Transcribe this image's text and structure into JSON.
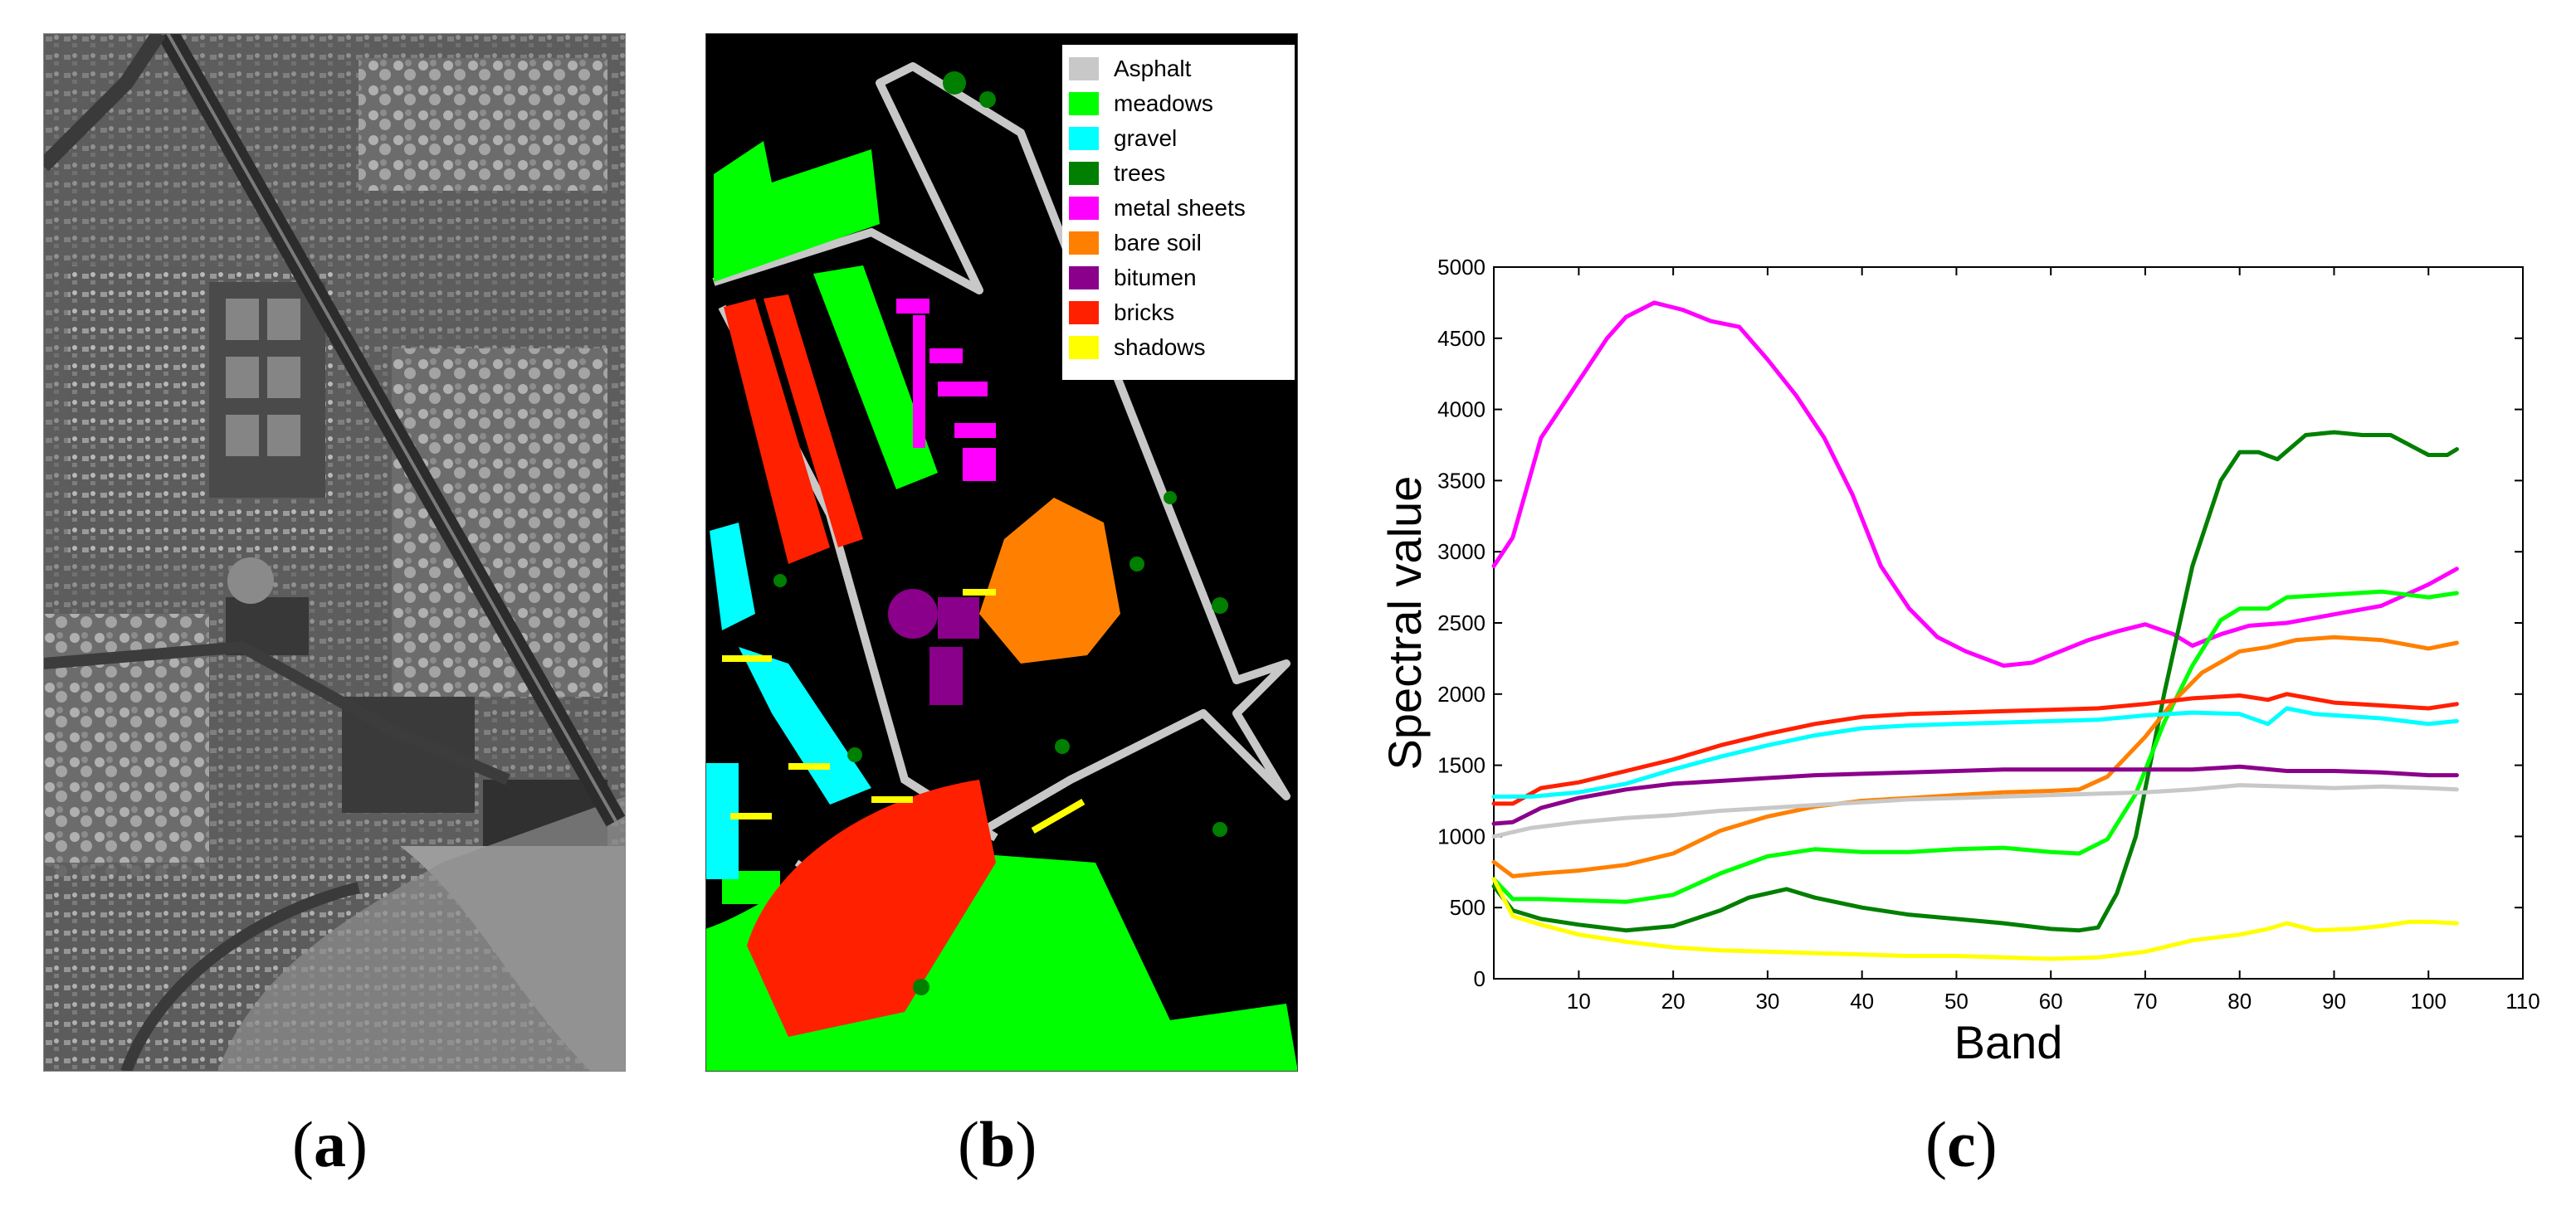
{
  "panels": {
    "a": {
      "label": "a"
    },
    "b": {
      "label": "b"
    },
    "c": {
      "label": "c"
    }
  },
  "legend": [
    {
      "label": "Asphalt",
      "color": "#c8c8c8"
    },
    {
      "label": "meadows",
      "color": "#00ff00"
    },
    {
      "label": "gravel",
      "color": "#00ffff"
    },
    {
      "label": "trees",
      "color": "#007f00"
    },
    {
      "label": "metal sheets",
      "color": "#ff00ff"
    },
    {
      "label": "bare soil",
      "color": "#ff8000"
    },
    {
      "label": "bitumen",
      "color": "#8b008b"
    },
    {
      "label": "bricks",
      "color": "#ff2000"
    },
    {
      "label": "shadows",
      "color": "#ffff00"
    }
  ],
  "chart_data": {
    "type": "line",
    "title": "",
    "xlabel": "Band",
    "ylabel": "Spectral value",
    "xlim": [
      1,
      110
    ],
    "ylim": [
      0,
      5000
    ],
    "xticks": [
      10,
      20,
      30,
      40,
      50,
      60,
      70,
      80,
      90,
      100,
      110
    ],
    "yticks": [
      0,
      500,
      1000,
      1500,
      2000,
      2500,
      3000,
      3500,
      4000,
      4500,
      5000
    ],
    "series": [
      {
        "name": "metal sheets",
        "color": "#ff00ff",
        "points": [
          [
            1,
            2900
          ],
          [
            3,
            3100
          ],
          [
            6,
            3800
          ],
          [
            10,
            4200
          ],
          [
            13,
            4500
          ],
          [
            15,
            4650
          ],
          [
            18,
            4750
          ],
          [
            21,
            4700
          ],
          [
            24,
            4620
          ],
          [
            27,
            4580
          ],
          [
            30,
            4350
          ],
          [
            33,
            4100
          ],
          [
            36,
            3800
          ],
          [
            39,
            3400
          ],
          [
            42,
            2900
          ],
          [
            45,
            2600
          ],
          [
            48,
            2400
          ],
          [
            51,
            2300
          ],
          [
            55,
            2200
          ],
          [
            58,
            2220
          ],
          [
            61,
            2300
          ],
          [
            64,
            2380
          ],
          [
            67,
            2440
          ],
          [
            70,
            2490
          ],
          [
            73,
            2420
          ],
          [
            75,
            2340
          ],
          [
            78,
            2420
          ],
          [
            81,
            2480
          ],
          [
            85,
            2500
          ],
          [
            90,
            2560
          ],
          [
            95,
            2620
          ],
          [
            100,
            2770
          ],
          [
            103,
            2880
          ]
        ]
      },
      {
        "name": "trees",
        "color": "#007f00",
        "points": [
          [
            1,
            650
          ],
          [
            3,
            480
          ],
          [
            6,
            420
          ],
          [
            10,
            380
          ],
          [
            15,
            340
          ],
          [
            20,
            370
          ],
          [
            25,
            480
          ],
          [
            28,
            570
          ],
          [
            32,
            630
          ],
          [
            35,
            570
          ],
          [
            40,
            500
          ],
          [
            45,
            450
          ],
          [
            50,
            420
          ],
          [
            55,
            390
          ],
          [
            60,
            350
          ],
          [
            63,
            340
          ],
          [
            65,
            360
          ],
          [
            67,
            600
          ],
          [
            69,
            1000
          ],
          [
            72,
            2000
          ],
          [
            75,
            2900
          ],
          [
            78,
            3500
          ],
          [
            80,
            3700
          ],
          [
            82,
            3700
          ],
          [
            84,
            3650
          ],
          [
            87,
            3820
          ],
          [
            90,
            3840
          ],
          [
            93,
            3820
          ],
          [
            96,
            3820
          ],
          [
            100,
            3680
          ],
          [
            102,
            3680
          ],
          [
            103,
            3720
          ]
        ]
      },
      {
        "name": "meadows",
        "color": "#00ff00",
        "points": [
          [
            1,
            700
          ],
          [
            3,
            560
          ],
          [
            6,
            560
          ],
          [
            10,
            550
          ],
          [
            15,
            540
          ],
          [
            20,
            590
          ],
          [
            25,
            740
          ],
          [
            30,
            860
          ],
          [
            35,
            910
          ],
          [
            40,
            890
          ],
          [
            45,
            890
          ],
          [
            50,
            910
          ],
          [
            55,
            920
          ],
          [
            60,
            890
          ],
          [
            63,
            880
          ],
          [
            66,
            980
          ],
          [
            69,
            1300
          ],
          [
            72,
            1800
          ],
          [
            75,
            2200
          ],
          [
            78,
            2520
          ],
          [
            80,
            2600
          ],
          [
            83,
            2600
          ],
          [
            85,
            2680
          ],
          [
            90,
            2700
          ],
          [
            95,
            2720
          ],
          [
            100,
            2680
          ],
          [
            103,
            2710
          ]
        ]
      },
      {
        "name": "bare soil",
        "color": "#ff8000",
        "points": [
          [
            1,
            820
          ],
          [
            3,
            720
          ],
          [
            6,
            740
          ],
          [
            10,
            760
          ],
          [
            15,
            800
          ],
          [
            20,
            880
          ],
          [
            25,
            1040
          ],
          [
            30,
            1140
          ],
          [
            35,
            1210
          ],
          [
            40,
            1250
          ],
          [
            45,
            1270
          ],
          [
            50,
            1290
          ],
          [
            55,
            1310
          ],
          [
            60,
            1320
          ],
          [
            63,
            1330
          ],
          [
            66,
            1420
          ],
          [
            70,
            1700
          ],
          [
            73,
            1950
          ],
          [
            76,
            2150
          ],
          [
            80,
            2300
          ],
          [
            83,
            2330
          ],
          [
            86,
            2380
          ],
          [
            90,
            2400
          ],
          [
            95,
            2380
          ],
          [
            100,
            2320
          ],
          [
            103,
            2360
          ]
        ]
      },
      {
        "name": "bricks",
        "color": "#ff2000",
        "points": [
          [
            1,
            1230
          ],
          [
            3,
            1230
          ],
          [
            6,
            1340
          ],
          [
            10,
            1380
          ],
          [
            15,
            1460
          ],
          [
            20,
            1540
          ],
          [
            25,
            1640
          ],
          [
            30,
            1720
          ],
          [
            35,
            1790
          ],
          [
            40,
            1840
          ],
          [
            45,
            1860
          ],
          [
            50,
            1870
          ],
          [
            55,
            1880
          ],
          [
            60,
            1890
          ],
          [
            65,
            1900
          ],
          [
            70,
            1930
          ],
          [
            75,
            1970
          ],
          [
            80,
            1990
          ],
          [
            83,
            1960
          ],
          [
            85,
            2000
          ],
          [
            90,
            1940
          ],
          [
            95,
            1920
          ],
          [
            100,
            1900
          ],
          [
            103,
            1930
          ]
        ]
      },
      {
        "name": "gravel",
        "color": "#00ffff",
        "points": [
          [
            1,
            1280
          ],
          [
            5,
            1280
          ],
          [
            10,
            1310
          ],
          [
            15,
            1370
          ],
          [
            20,
            1470
          ],
          [
            25,
            1560
          ],
          [
            30,
            1640
          ],
          [
            35,
            1710
          ],
          [
            40,
            1760
          ],
          [
            45,
            1780
          ],
          [
            50,
            1790
          ],
          [
            55,
            1800
          ],
          [
            60,
            1810
          ],
          [
            65,
            1820
          ],
          [
            70,
            1850
          ],
          [
            75,
            1870
          ],
          [
            80,
            1860
          ],
          [
            83,
            1790
          ],
          [
            85,
            1900
          ],
          [
            88,
            1860
          ],
          [
            95,
            1830
          ],
          [
            100,
            1790
          ],
          [
            103,
            1810
          ]
        ]
      },
      {
        "name": "bitumen",
        "color": "#8b008b",
        "points": [
          [
            1,
            1090
          ],
          [
            3,
            1100
          ],
          [
            6,
            1200
          ],
          [
            10,
            1270
          ],
          [
            15,
            1330
          ],
          [
            20,
            1370
          ],
          [
            25,
            1390
          ],
          [
            30,
            1410
          ],
          [
            35,
            1430
          ],
          [
            40,
            1440
          ],
          [
            45,
            1450
          ],
          [
            50,
            1460
          ],
          [
            55,
            1470
          ],
          [
            60,
            1470
          ],
          [
            65,
            1470
          ],
          [
            70,
            1470
          ],
          [
            75,
            1470
          ],
          [
            80,
            1490
          ],
          [
            85,
            1460
          ],
          [
            90,
            1460
          ],
          [
            95,
            1450
          ],
          [
            100,
            1430
          ],
          [
            103,
            1430
          ]
        ]
      },
      {
        "name": "Asphalt",
        "color": "#c8c8c8",
        "points": [
          [
            1,
            1000
          ],
          [
            5,
            1060
          ],
          [
            10,
            1100
          ],
          [
            15,
            1130
          ],
          [
            20,
            1150
          ],
          [
            25,
            1180
          ],
          [
            30,
            1200
          ],
          [
            35,
            1220
          ],
          [
            40,
            1240
          ],
          [
            45,
            1260
          ],
          [
            50,
            1270
          ],
          [
            55,
            1280
          ],
          [
            60,
            1290
          ],
          [
            65,
            1300
          ],
          [
            70,
            1310
          ],
          [
            75,
            1330
          ],
          [
            80,
            1360
          ],
          [
            85,
            1350
          ],
          [
            90,
            1340
          ],
          [
            95,
            1350
          ],
          [
            100,
            1340
          ],
          [
            103,
            1330
          ]
        ]
      },
      {
        "name": "shadows",
        "color": "#ffff00",
        "points": [
          [
            1,
            700
          ],
          [
            3,
            440
          ],
          [
            6,
            380
          ],
          [
            10,
            310
          ],
          [
            15,
            260
          ],
          [
            20,
            220
          ],
          [
            25,
            200
          ],
          [
            30,
            190
          ],
          [
            35,
            180
          ],
          [
            40,
            170
          ],
          [
            45,
            160
          ],
          [
            50,
            160
          ],
          [
            55,
            150
          ],
          [
            60,
            140
          ],
          [
            65,
            150
          ],
          [
            70,
            190
          ],
          [
            75,
            270
          ],
          [
            80,
            310
          ],
          [
            83,
            350
          ],
          [
            85,
            390
          ],
          [
            88,
            340
          ],
          [
            92,
            350
          ],
          [
            95,
            370
          ],
          [
            98,
            400
          ],
          [
            100,
            400
          ],
          [
            103,
            390
          ]
        ]
      }
    ]
  }
}
